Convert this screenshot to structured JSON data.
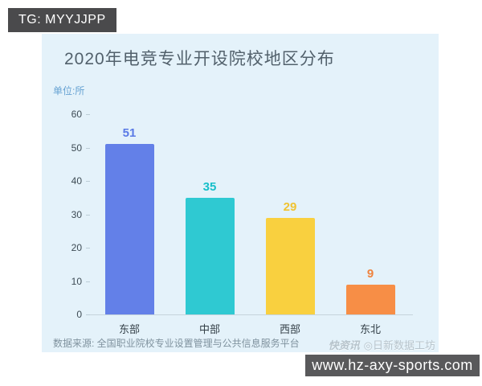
{
  "badge": {
    "text": "TG: MYYJJPP"
  },
  "chart_data": {
    "type": "bar",
    "title": "2020年电竞专业开设院校地区分布",
    "unit_label": "单位:所",
    "categories": [
      "东部",
      "中部",
      "西部",
      "东北"
    ],
    "values": [
      51,
      35,
      29,
      9
    ],
    "bar_colors": [
      "#6380e8",
      "#2fc9d2",
      "#f9d03f",
      "#f78e46"
    ],
    "label_colors": [
      "#5a7ae6",
      "#17bfc9",
      "#f0c331",
      "#ef833e"
    ],
    "ylim": [
      0,
      60
    ],
    "y_tick_step": 10,
    "grid": false,
    "legend": "none",
    "xlabel": "",
    "ylabel": "",
    "source": "数据来源: 全国职业院校专业设置管理与公共信息服务平台"
  },
  "watermark": {
    "logo_text": "快资讯",
    "author_text": "◎日新数据工坊"
  },
  "url_bar": {
    "text": "www.hz-axy-sports.com"
  },
  "colors": {
    "card_background": "#e4f2fa",
    "badge_background": "#4a4a4c",
    "url_bar_background": "#59595b",
    "title_text": "#52616c",
    "axis_text": "#3d4b54"
  }
}
